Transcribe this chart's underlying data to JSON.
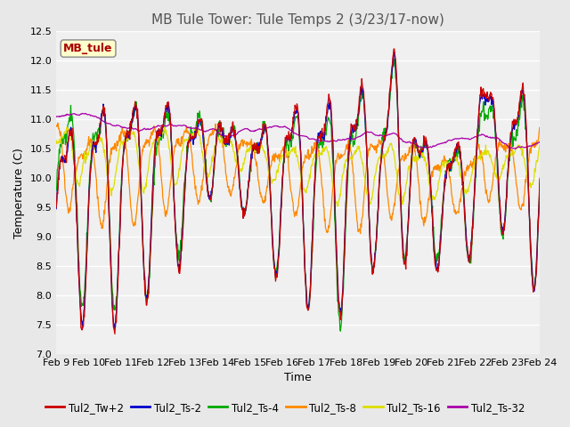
{
  "title": "MB Tule Tower: Tule Temps 2 (3/23/17-now)",
  "xlabel": "Time",
  "ylabel": "Temperature (C)",
  "ylim": [
    7.0,
    12.5
  ],
  "yticks": [
    7.0,
    7.5,
    8.0,
    8.5,
    9.0,
    9.5,
    10.0,
    10.5,
    11.0,
    11.5,
    12.0,
    12.5
  ],
  "xtick_labels": [
    "Feb 9",
    "Feb 10",
    "Feb 11",
    "Feb 12",
    "Feb 13",
    "Feb 14",
    "Feb 15",
    "Feb 16",
    "Feb 17",
    "Feb 18",
    "Feb 19",
    "Feb 20",
    "Feb 21",
    "Feb 22",
    "Feb 23",
    "Feb 24"
  ],
  "legend_label": "MB_tule",
  "series_names": [
    "Tul2_Tw+2",
    "Tul2_Ts-2",
    "Tul2_Ts-4",
    "Tul2_Ts-8",
    "Tul2_Ts-16",
    "Tul2_Ts-32"
  ],
  "series_colors": [
    "#cc0000",
    "#0000cc",
    "#00aa00",
    "#ff8800",
    "#dddd00",
    "#aa00aa"
  ],
  "background_color": "#e8e8e8",
  "plot_bg_color": "#f0f0f0",
  "grid_color": "#ffffff",
  "title_fontsize": 11,
  "axis_fontsize": 9,
  "tick_fontsize": 8,
  "legend_fontsize": 8.5
}
